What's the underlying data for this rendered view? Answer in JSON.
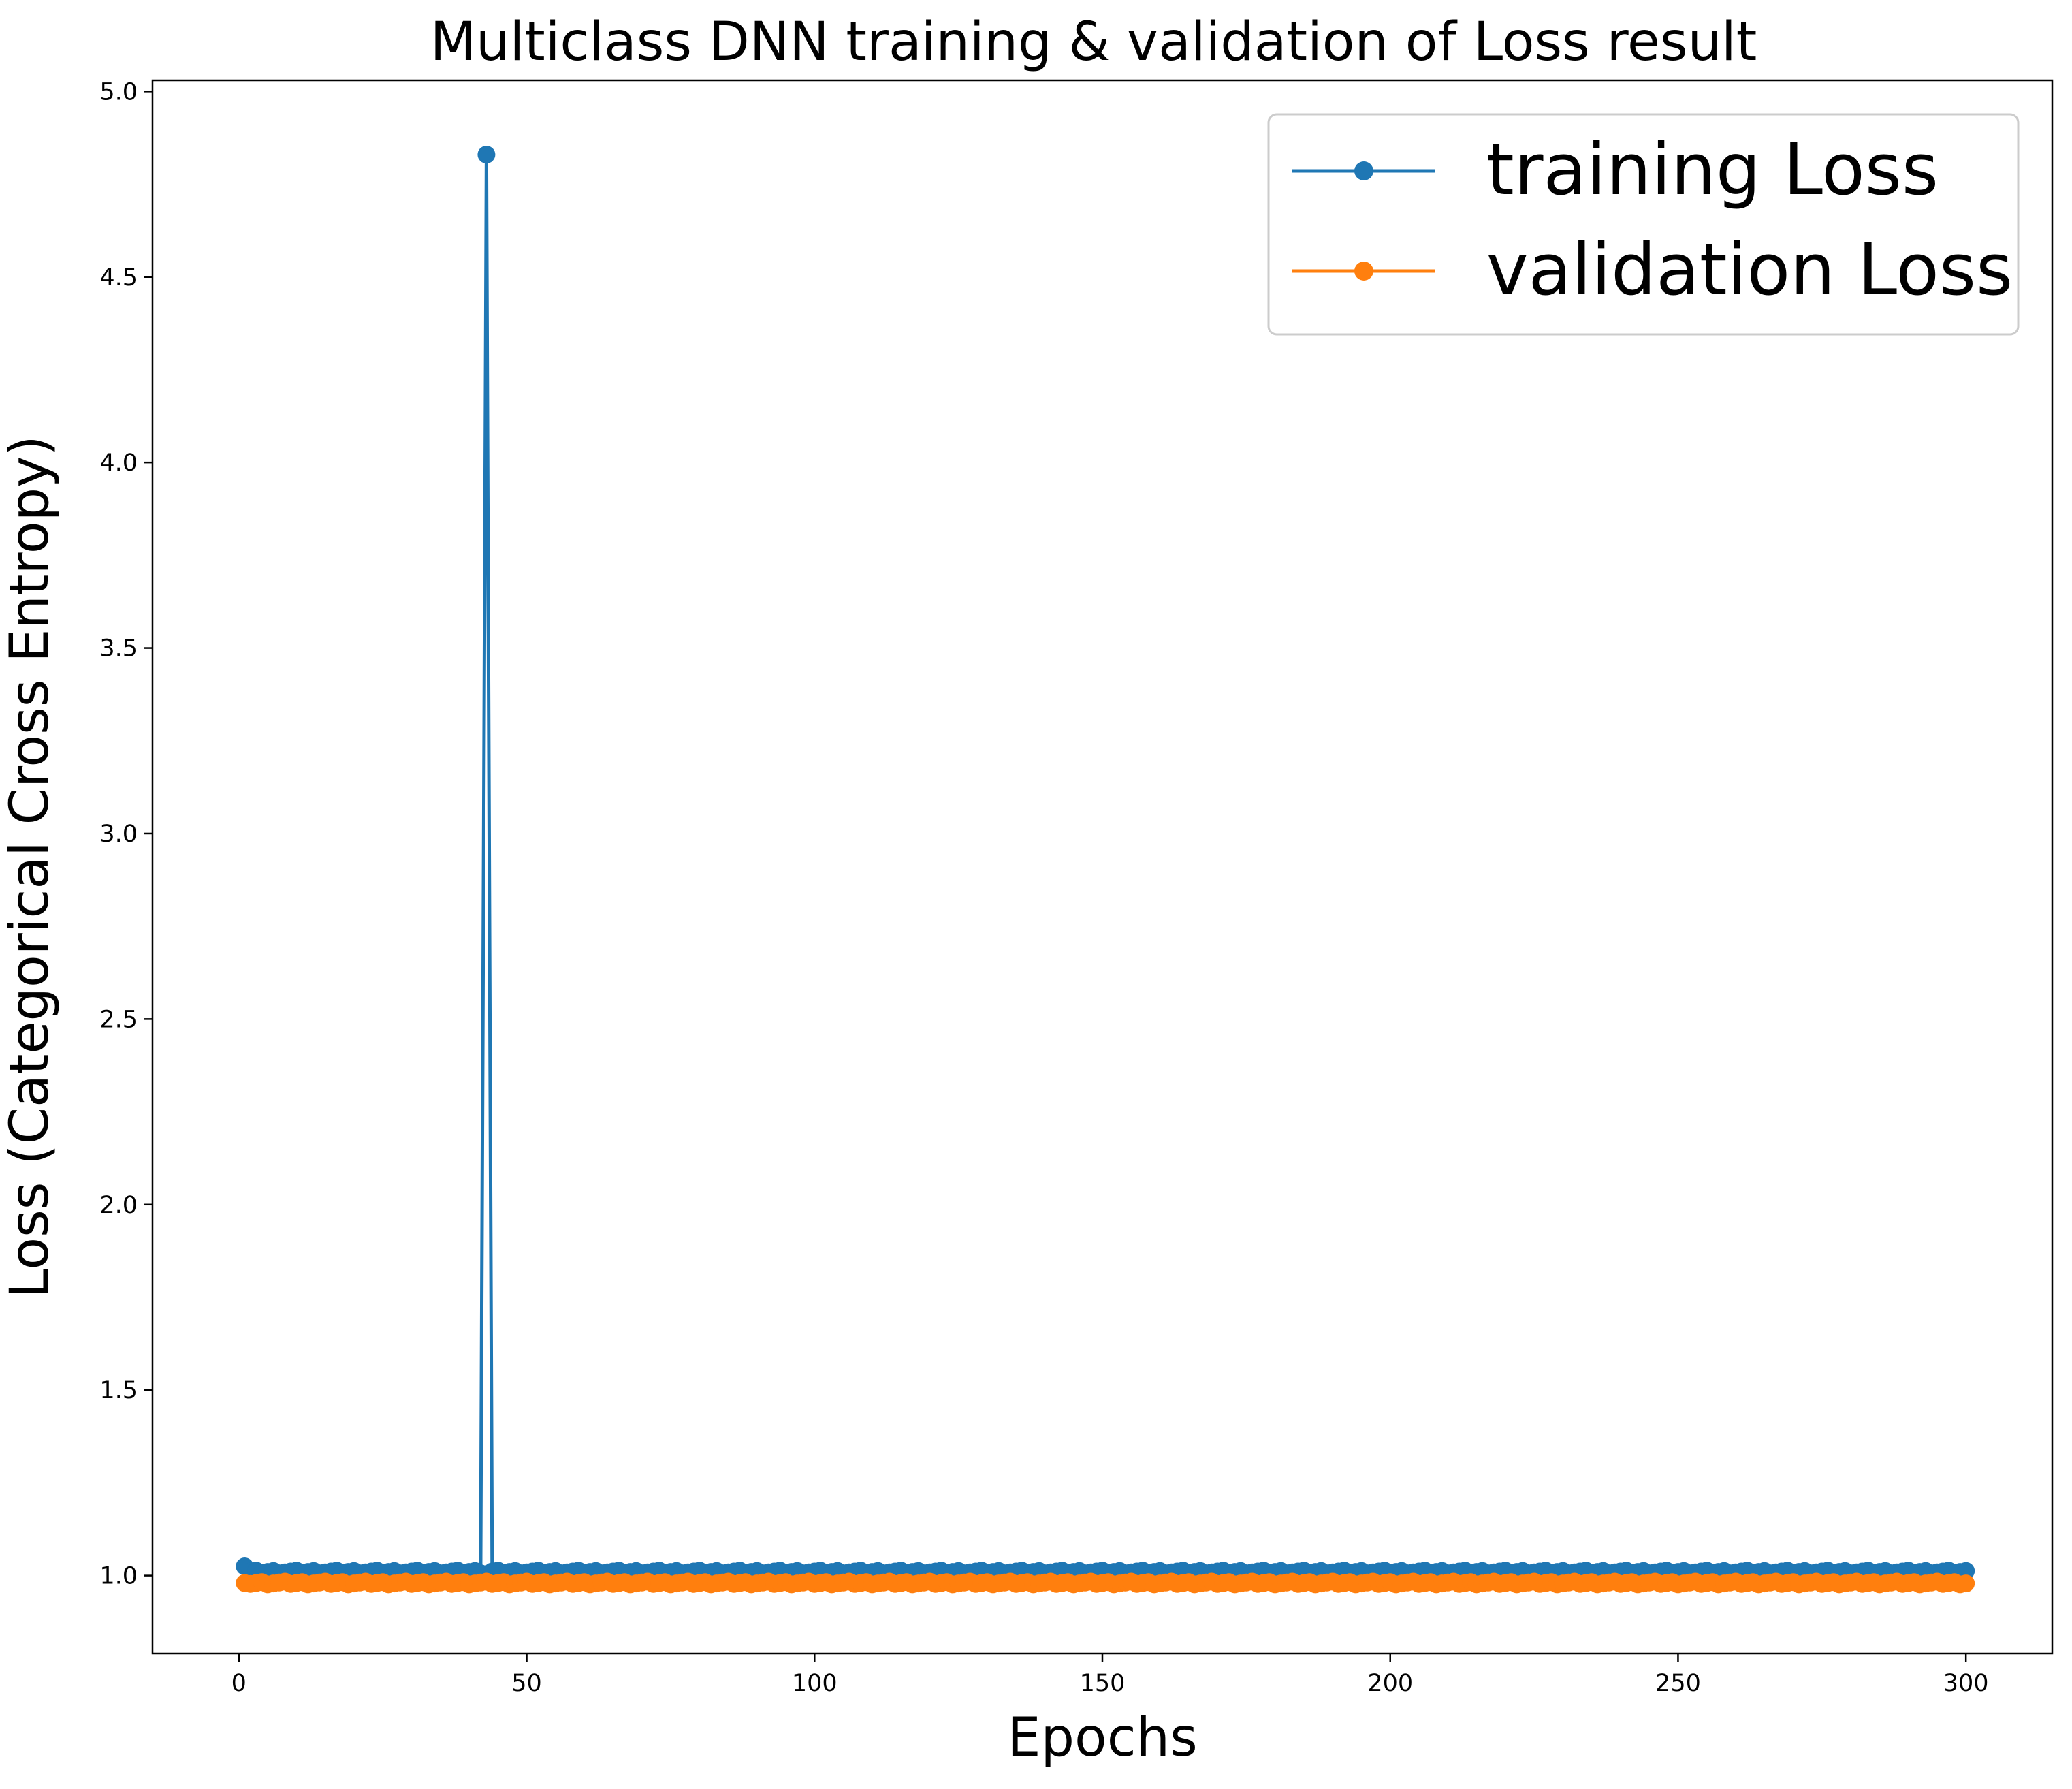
{
  "chart_data": {
    "type": "line",
    "title": "Multiclass DNN training & validation of Loss result",
    "xlabel": "Epochs",
    "ylabel": "Loss (Categorical Cross Entropy)",
    "xlim": [
      -15,
      315
    ],
    "ylim": [
      0.79,
      5.03
    ],
    "xticks": [
      0,
      50,
      100,
      150,
      200,
      250,
      300
    ],
    "xtick_labels": [
      "0",
      "50",
      "100",
      "150",
      "200",
      "250",
      "300"
    ],
    "yticks": [
      1.0,
      1.5,
      2.0,
      2.5,
      3.0,
      3.5,
      4.0,
      4.5,
      5.0
    ],
    "ytick_labels": [
      "1.0",
      "1.5",
      "2.0",
      "2.5",
      "3.0",
      "3.5",
      "4.0",
      "4.5",
      "5.0"
    ],
    "grid": false,
    "legend_position": "top-right",
    "x_range": [
      1,
      300
    ],
    "series": [
      {
        "name": "training Loss",
        "color": "#1f77b4",
        "marker": "circle",
        "base_value": 1.01,
        "first_value": 1.025,
        "spike": {
          "epoch": 43,
          "value": 4.83
        }
      },
      {
        "name": "validation Loss",
        "color": "#ff7f0e",
        "marker": "circle",
        "base_value": 0.98,
        "first_value": 0.98
      }
    ]
  }
}
